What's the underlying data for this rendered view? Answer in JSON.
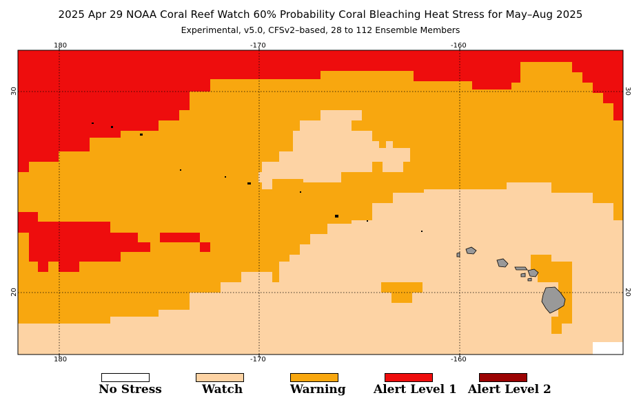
{
  "title": "2025 Apr 29 NOAA Coral Reef Watch 60% Probability Coral Bleaching Heat Stress for May–Aug 2025",
  "subtitle": "Experimental, v5.0, CFSv2–based, 28 to 112 Ensemble Members",
  "axes": {
    "lon_ticks": [
      "180",
      "-170",
      "-160"
    ],
    "lat_ticks": [
      "30",
      "20"
    ]
  },
  "colors": {
    "no_stress": "#ffffff",
    "watch": "#fdd3a4",
    "warning": "#f8a70f",
    "alert1": "#ee0d0d",
    "alert2": "#9b0303",
    "land": "#999999",
    "grid": "#000000"
  },
  "legend": [
    {
      "label": "No Stress",
      "color": "#ffffff"
    },
    {
      "label": "Watch",
      "color": "#fdd3a4"
    },
    {
      "label": "Warning",
      "color": "#f8a70f"
    },
    {
      "label": "Alert Level 1",
      "color": "#ee0d0d"
    },
    {
      "label": "Alert Level 2",
      "color": "#9b0303"
    }
  ]
}
